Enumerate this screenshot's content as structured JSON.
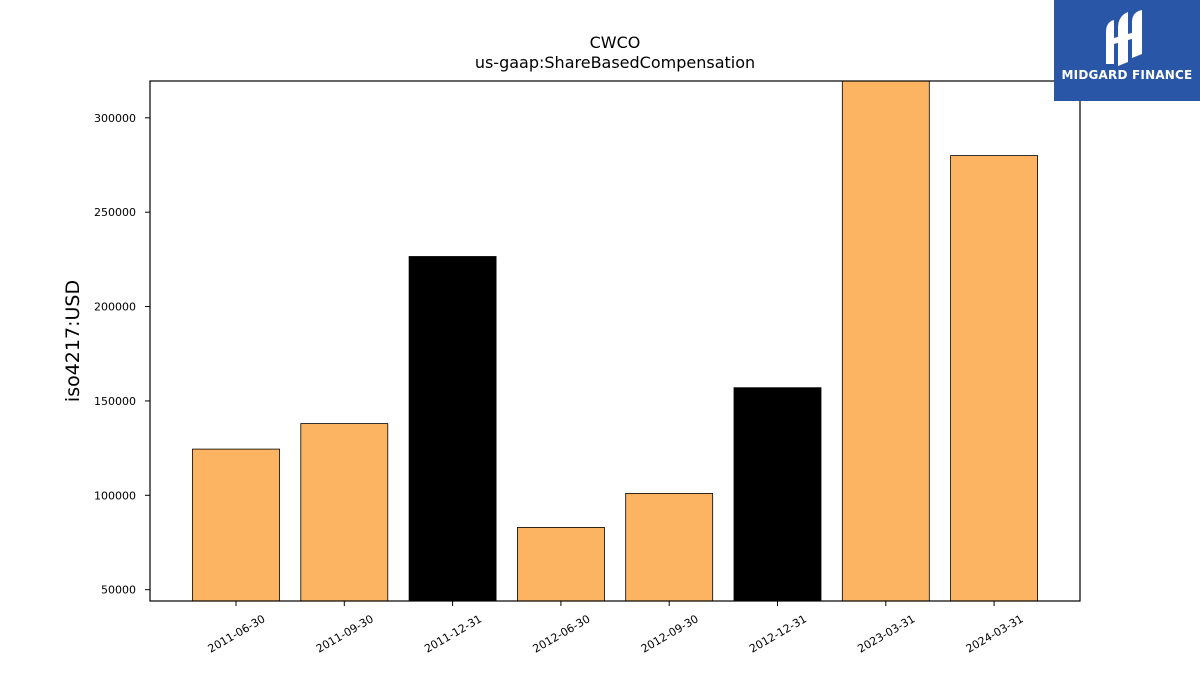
{
  "brand": {
    "name": "MIDGARD FINANCE",
    "logo_icon": "midgard-m-logo-icon",
    "background": "#2a56a8"
  },
  "chart_data": {
    "type": "bar",
    "title": "CWCO",
    "subtitle": "us-gaap:ShareBasedCompensation",
    "xlabel": "",
    "ylabel": "iso4217:USD",
    "categories": [
      "2011-06-30",
      "2011-09-30",
      "2011-12-31",
      "2012-06-30",
      "2012-09-30",
      "2012-12-31",
      "2023-03-31",
      "2024-03-31"
    ],
    "values": [
      124500,
      138000,
      226500,
      83000,
      101000,
      157000,
      319500,
      280000
    ],
    "bar_colors": [
      "#fdb462",
      "#fdb462",
      "#000000",
      "#fdb462",
      "#fdb462",
      "#000000",
      "#fdb462",
      "#fdb462"
    ],
    "yticks": [
      50000,
      100000,
      150000,
      200000,
      250000,
      300000
    ],
    "ylim": [
      44000,
      319500
    ],
    "grid": false,
    "legend": "none"
  }
}
